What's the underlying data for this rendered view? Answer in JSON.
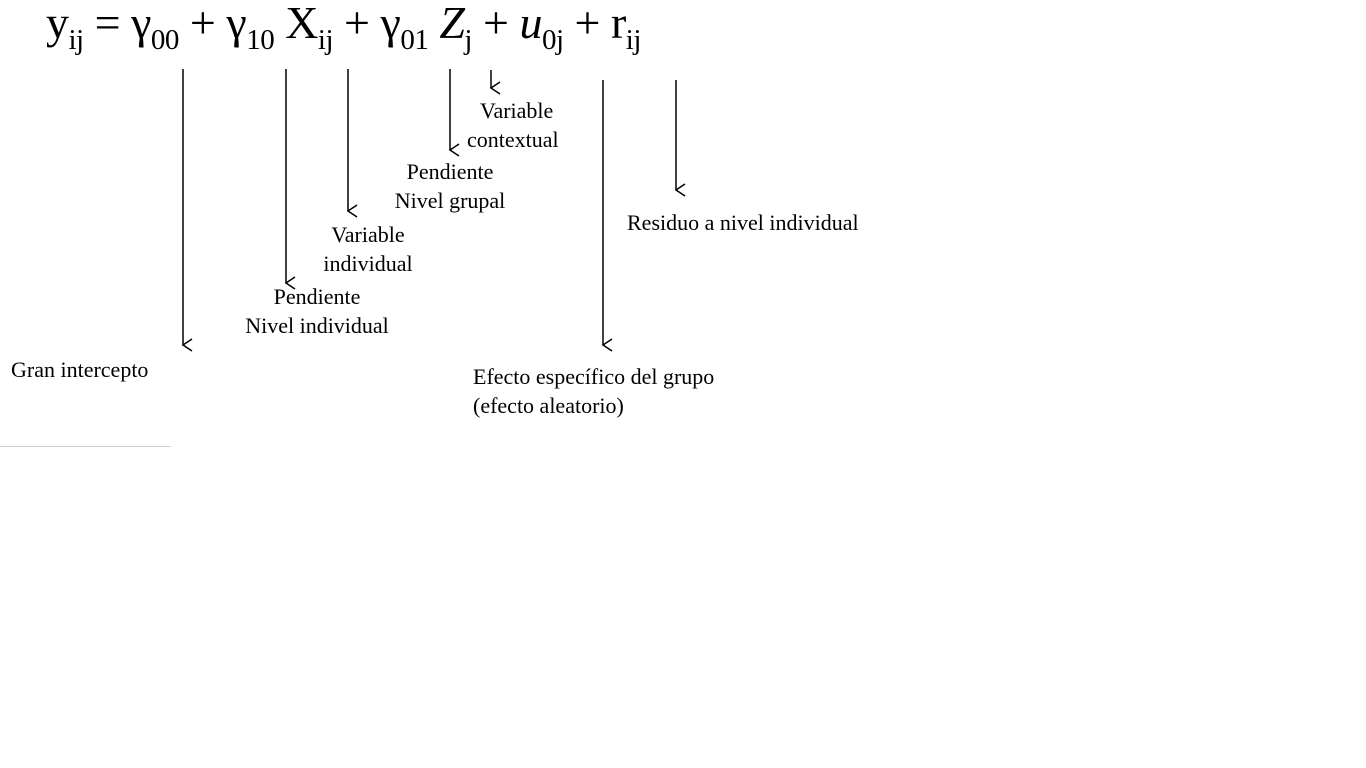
{
  "equation": {
    "y": "y",
    "y_sub": "ij",
    "eq": "=",
    "g00": "γ",
    "g00_sub": "00",
    "plus1": "+",
    "g10": "γ",
    "g10_sub": "10",
    "x": "X",
    "x_sub": "ij",
    "plus2": "+",
    "g01": "γ",
    "g01_sub": "01",
    "z": "Z",
    "z_sub": "j",
    "plus3": "+",
    "u": "u",
    "u_sub": "0j",
    "plus4": "+",
    "r": "r",
    "r_sub": "ij"
  },
  "labels": {
    "gran_intercepto": "Gran intercepto",
    "pendiente_ind_1": "Pendiente",
    "pendiente_ind_2": "Nivel individual",
    "var_ind_1": "Variable",
    "var_ind_2": "individual",
    "pendiente_grp_1": "Pendiente",
    "pendiente_grp_2": "Nivel grupal",
    "var_ctx_1": "Variable",
    "var_ctx_2": "contextual",
    "efecto_1": "Efecto específico del grupo",
    "efecto_2": "(efecto aleatorio)",
    "residuo": "Residuo a nivel individual"
  }
}
